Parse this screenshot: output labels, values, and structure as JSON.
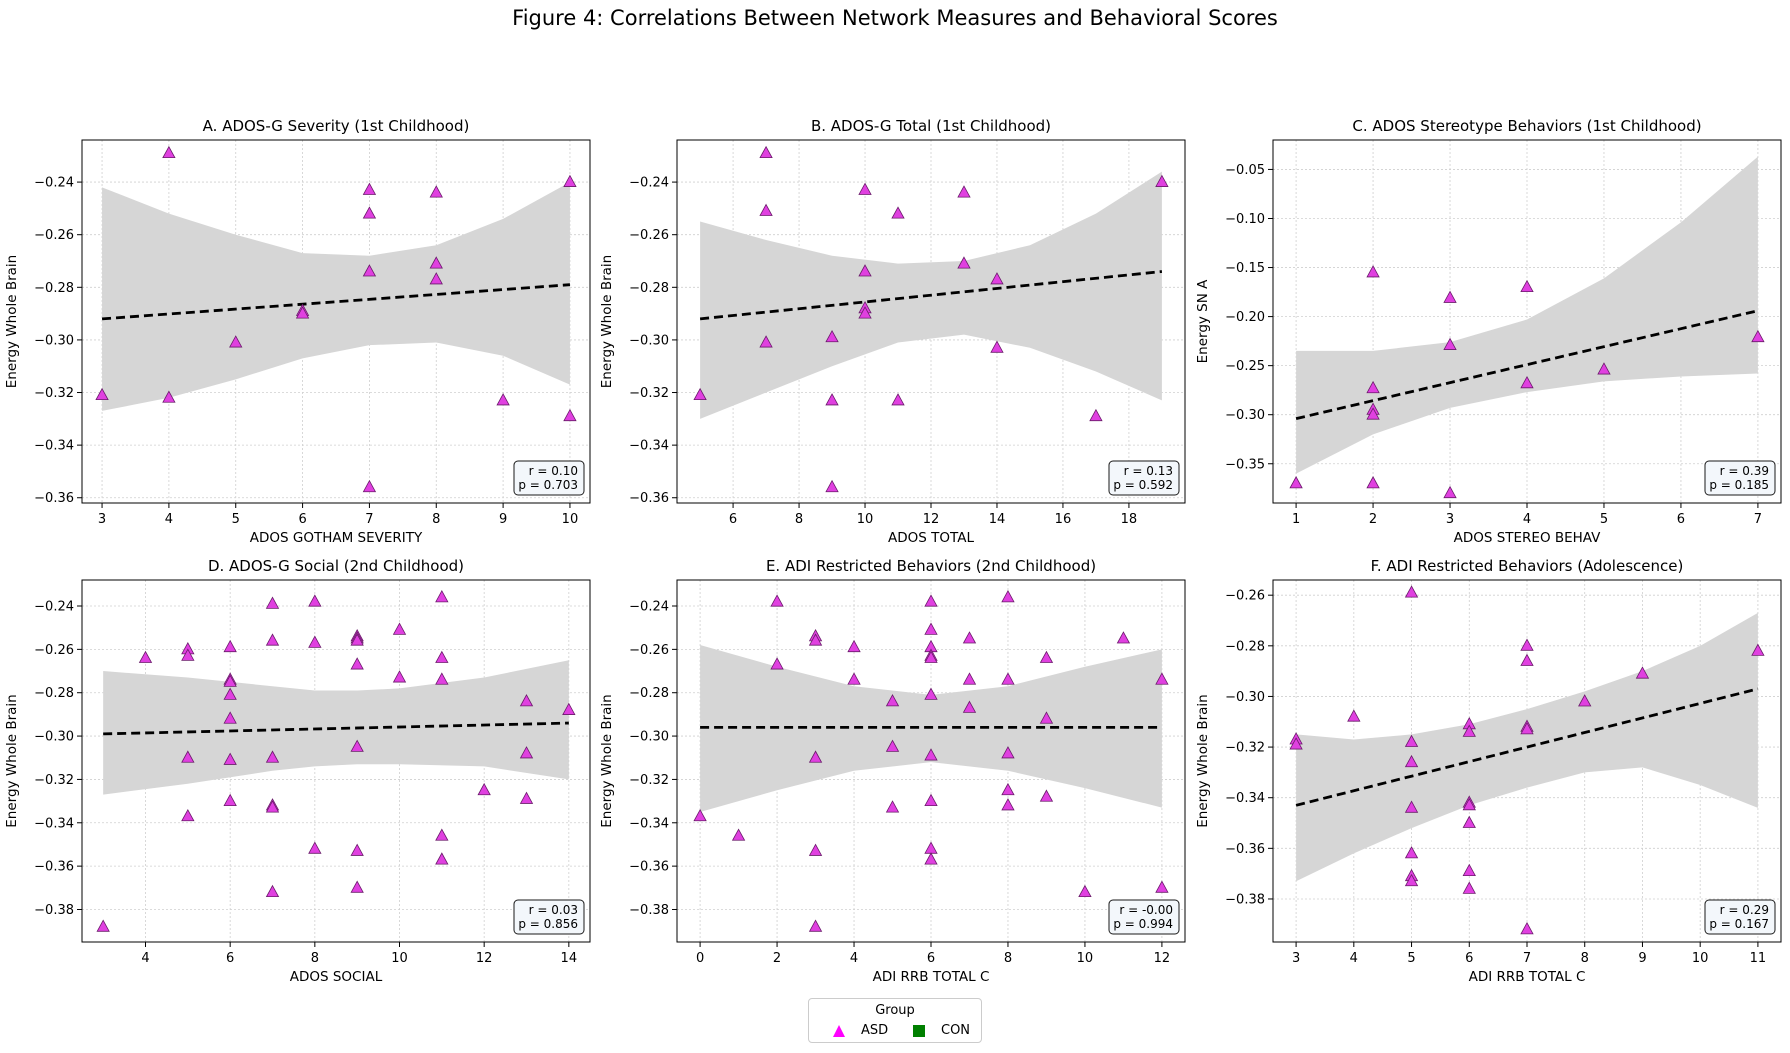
{
  "figure_title": "Figure 4: Correlations Between Network Measures and Behavioral Scores",
  "legend": {
    "title": "Group",
    "items": [
      {
        "label": "ASD",
        "marker": "triangle",
        "color": "#ff00ff"
      },
      {
        "label": "CON",
        "marker": "square",
        "color": "#008000"
      }
    ]
  },
  "colors": {
    "point_fill": "#e040e0",
    "point_edge": "#6a1b6a",
    "band": "#d6d6d6",
    "fit_line": "#000000"
  },
  "chart_data": [
    {
      "type": "scatter",
      "title": "A. ADOS-G Severity (1st Childhood)",
      "xlabel": "ADOS GOTHAM SEVERITY",
      "ylabel": "Energy Whole Brain",
      "xlim": [
        2.7,
        10.3
      ],
      "ylim": [
        -0.362,
        -0.224
      ],
      "xticks": [
        3,
        4,
        5,
        6,
        7,
        8,
        9,
        10
      ],
      "yticks": [
        -0.36,
        -0.34,
        -0.32,
        -0.3,
        -0.28,
        -0.26,
        -0.24
      ],
      "stats": [
        "r = 0.10",
        "p = 0.703"
      ],
      "fit": {
        "x": [
          3,
          10
        ],
        "y": [
          -0.292,
          -0.279
        ]
      },
      "band_upper": [
        [
          3,
          -0.242
        ],
        [
          4,
          -0.252
        ],
        [
          5,
          -0.26
        ],
        [
          6,
          -0.267
        ],
        [
          7,
          -0.268
        ],
        [
          8,
          -0.264
        ],
        [
          9,
          -0.254
        ],
        [
          10,
          -0.24
        ]
      ],
      "band_lower": [
        [
          3,
          -0.327
        ],
        [
          4,
          -0.322
        ],
        [
          5,
          -0.315
        ],
        [
          6,
          -0.307
        ],
        [
          7,
          -0.302
        ],
        [
          8,
          -0.301
        ],
        [
          9,
          -0.306
        ],
        [
          10,
          -0.317
        ]
      ],
      "points": [
        [
          3,
          -0.321
        ],
        [
          4,
          -0.229
        ],
        [
          4,
          -0.322
        ],
        [
          5,
          -0.301
        ],
        [
          6,
          -0.289
        ],
        [
          6,
          -0.29
        ],
        [
          7,
          -0.243
        ],
        [
          7,
          -0.252
        ],
        [
          7,
          -0.274
        ],
        [
          7,
          -0.356
        ],
        [
          8,
          -0.244
        ],
        [
          8,
          -0.271
        ],
        [
          8,
          -0.277
        ],
        [
          9,
          -0.323
        ],
        [
          10,
          -0.24
        ],
        [
          10,
          -0.329
        ]
      ]
    },
    {
      "type": "scatter",
      "title": "B. ADOS-G Total (1st Childhood)",
      "xlabel": "ADOS TOTAL",
      "ylabel": "Energy Whole Brain",
      "xlim": [
        4.3,
        19.7
      ],
      "ylim": [
        -0.362,
        -0.224
      ],
      "xticks": [
        6,
        8,
        10,
        12,
        14,
        16,
        18
      ],
      "yticks": [
        -0.36,
        -0.34,
        -0.32,
        -0.3,
        -0.28,
        -0.26,
        -0.24
      ],
      "stats": [
        "r = 0.13",
        "p = 0.592"
      ],
      "fit": {
        "x": [
          5,
          19
        ],
        "y": [
          -0.292,
          -0.274
        ]
      },
      "band_upper": [
        [
          5,
          -0.255
        ],
        [
          7,
          -0.262
        ],
        [
          9,
          -0.268
        ],
        [
          11,
          -0.271
        ],
        [
          13,
          -0.27
        ],
        [
          15,
          -0.264
        ],
        [
          17,
          -0.252
        ],
        [
          19,
          -0.236
        ]
      ],
      "band_lower": [
        [
          5,
          -0.33
        ],
        [
          7,
          -0.32
        ],
        [
          9,
          -0.31
        ],
        [
          11,
          -0.301
        ],
        [
          13,
          -0.298
        ],
        [
          15,
          -0.303
        ],
        [
          17,
          -0.312
        ],
        [
          19,
          -0.323
        ]
      ],
      "points": [
        [
          5,
          -0.321
        ],
        [
          7,
          -0.229
        ],
        [
          7,
          -0.251
        ],
        [
          7,
          -0.301
        ],
        [
          9,
          -0.299
        ],
        [
          9,
          -0.323
        ],
        [
          9,
          -0.356
        ],
        [
          10,
          -0.243
        ],
        [
          10,
          -0.274
        ],
        [
          10,
          -0.288
        ],
        [
          10,
          -0.29
        ],
        [
          11,
          -0.252
        ],
        [
          11,
          -0.323
        ],
        [
          13,
          -0.244
        ],
        [
          13,
          -0.271
        ],
        [
          14,
          -0.277
        ],
        [
          14,
          -0.303
        ],
        [
          17,
          -0.329
        ],
        [
          19,
          -0.24
        ]
      ]
    },
    {
      "type": "scatter",
      "title": "C. ADOS Stereotype Behaviors (1st Childhood)",
      "xlabel": "ADOS STEREO BEHAV",
      "ylabel": "Energy SN A",
      "xlim": [
        0.7,
        7.3
      ],
      "ylim": [
        -0.39,
        -0.02
      ],
      "xticks": [
        1,
        2,
        3,
        4,
        5,
        6,
        7
      ],
      "yticks": [
        -0.35,
        -0.3,
        -0.25,
        -0.2,
        -0.15,
        -0.1,
        -0.05
      ],
      "stats": [
        "r = 0.39",
        "p = 0.185"
      ],
      "fit": {
        "x": [
          1,
          7
        ],
        "y": [
          -0.304,
          -0.194
        ]
      },
      "band_upper": [
        [
          1,
          -0.235
        ],
        [
          2,
          -0.235
        ],
        [
          3,
          -0.226
        ],
        [
          4,
          -0.203
        ],
        [
          5,
          -0.161
        ],
        [
          6,
          -0.104
        ],
        [
          7,
          -0.037
        ]
      ],
      "band_lower": [
        [
          1,
          -0.36
        ],
        [
          2,
          -0.32
        ],
        [
          3,
          -0.293
        ],
        [
          4,
          -0.277
        ],
        [
          5,
          -0.266
        ],
        [
          6,
          -0.261
        ],
        [
          7,
          -0.258
        ]
      ],
      "points": [
        [
          1,
          -0.37
        ],
        [
          2,
          -0.155
        ],
        [
          2,
          -0.273
        ],
        [
          2,
          -0.295
        ],
        [
          2,
          -0.3
        ],
        [
          2,
          -0.37
        ],
        [
          3,
          -0.181
        ],
        [
          3,
          -0.229
        ],
        [
          3,
          -0.38
        ],
        [
          4,
          -0.17
        ],
        [
          4,
          -0.268
        ],
        [
          5,
          -0.254
        ],
        [
          7,
          -0.221
        ]
      ]
    },
    {
      "type": "scatter",
      "title": "D. ADOS-G Social (2nd Childhood)",
      "xlabel": "ADOS SOCIAL",
      "ylabel": "Energy Whole Brain",
      "xlim": [
        2.5,
        14.5
      ],
      "ylim": [
        -0.395,
        -0.228
      ],
      "xticks": [
        4,
        6,
        8,
        10,
        12,
        14
      ],
      "yticks": [
        -0.38,
        -0.36,
        -0.34,
        -0.32,
        -0.3,
        -0.28,
        -0.26,
        -0.24
      ],
      "stats": [
        "r = 0.03",
        "p = 0.856"
      ],
      "fit": {
        "x": [
          3,
          14
        ],
        "y": [
          -0.299,
          -0.294
        ]
      },
      "band_upper": [
        [
          3,
          -0.27
        ],
        [
          5,
          -0.273
        ],
        [
          7,
          -0.277
        ],
        [
          8,
          -0.279
        ],
        [
          9,
          -0.279
        ],
        [
          10,
          -0.278
        ],
        [
          12,
          -0.273
        ],
        [
          14,
          -0.265
        ]
      ],
      "band_lower": [
        [
          3,
          -0.327
        ],
        [
          5,
          -0.322
        ],
        [
          7,
          -0.316
        ],
        [
          8,
          -0.314
        ],
        [
          9,
          -0.313
        ],
        [
          10,
          -0.313
        ],
        [
          12,
          -0.314
        ],
        [
          14,
          -0.32
        ]
      ],
      "points": [
        [
          3,
          -0.388
        ],
        [
          4,
          -0.264
        ],
        [
          5,
          -0.26
        ],
        [
          5,
          -0.263
        ],
        [
          5,
          -0.31
        ],
        [
          5,
          -0.337
        ],
        [
          6,
          -0.259
        ],
        [
          6,
          -0.274
        ],
        [
          6,
          -0.275
        ],
        [
          6,
          -0.281
        ],
        [
          6,
          -0.292
        ],
        [
          6,
          -0.311
        ],
        [
          6,
          -0.33
        ],
        [
          7,
          -0.239
        ],
        [
          7,
          -0.256
        ],
        [
          7,
          -0.31
        ],
        [
          7,
          -0.332
        ],
        [
          7,
          -0.333
        ],
        [
          7,
          -0.372
        ],
        [
          8,
          -0.238
        ],
        [
          8,
          -0.257
        ],
        [
          8,
          -0.352
        ],
        [
          9,
          -0.254
        ],
        [
          9,
          -0.255
        ],
        [
          9,
          -0.256
        ],
        [
          9,
          -0.267
        ],
        [
          9,
          -0.305
        ],
        [
          9,
          -0.353
        ],
        [
          9,
          -0.37
        ],
        [
          10,
          -0.251
        ],
        [
          10,
          -0.273
        ],
        [
          11,
          -0.236
        ],
        [
          11,
          -0.264
        ],
        [
          11,
          -0.274
        ],
        [
          11,
          -0.346
        ],
        [
          11,
          -0.357
        ],
        [
          12,
          -0.325
        ],
        [
          13,
          -0.284
        ],
        [
          13,
          -0.308
        ],
        [
          13,
          -0.329
        ],
        [
          14,
          -0.288
        ]
      ]
    },
    {
      "type": "scatter",
      "title": "E. ADI Restricted Behaviors (2nd Childhood)",
      "xlabel": "ADI RRB TOTAL C",
      "ylabel": "Energy Whole Brain",
      "xlim": [
        -0.6,
        12.6
      ],
      "ylim": [
        -0.395,
        -0.228
      ],
      "xticks": [
        0,
        2,
        4,
        6,
        8,
        10,
        12
      ],
      "yticks": [
        -0.38,
        -0.36,
        -0.34,
        -0.32,
        -0.3,
        -0.28,
        -0.26,
        -0.24
      ],
      "stats": [
        "r = -0.00",
        "p = 0.994"
      ],
      "fit": {
        "x": [
          0,
          12
        ],
        "y": [
          -0.296,
          -0.296
        ]
      },
      "band_upper": [
        [
          0,
          -0.258
        ],
        [
          2,
          -0.268
        ],
        [
          4,
          -0.277
        ],
        [
          6,
          -0.281
        ],
        [
          8,
          -0.277
        ],
        [
          10,
          -0.268
        ],
        [
          12,
          -0.26
        ]
      ],
      "band_lower": [
        [
          0,
          -0.335
        ],
        [
          2,
          -0.325
        ],
        [
          4,
          -0.316
        ],
        [
          6,
          -0.312
        ],
        [
          8,
          -0.316
        ],
        [
          10,
          -0.324
        ],
        [
          12,
          -0.333
        ]
      ],
      "points": [
        [
          0,
          -0.337
        ],
        [
          1,
          -0.346
        ],
        [
          2,
          -0.238
        ],
        [
          2,
          -0.267
        ],
        [
          3,
          -0.254
        ],
        [
          3,
          -0.256
        ],
        [
          3,
          -0.31
        ],
        [
          3,
          -0.353
        ],
        [
          3,
          -0.388
        ],
        [
          4,
          -0.259
        ],
        [
          4,
          -0.274
        ],
        [
          5,
          -0.284
        ],
        [
          5,
          -0.305
        ],
        [
          5,
          -0.333
        ],
        [
          6,
          -0.238
        ],
        [
          6,
          -0.251
        ],
        [
          6,
          -0.259
        ],
        [
          6,
          -0.263
        ],
        [
          6,
          -0.264
        ],
        [
          6,
          -0.281
        ],
        [
          6,
          -0.309
        ],
        [
          6,
          -0.33
        ],
        [
          6,
          -0.352
        ],
        [
          6,
          -0.357
        ],
        [
          7,
          -0.255
        ],
        [
          7,
          -0.274
        ],
        [
          7,
          -0.287
        ],
        [
          8,
          -0.236
        ],
        [
          8,
          -0.274
        ],
        [
          8,
          -0.308
        ],
        [
          8,
          -0.325
        ],
        [
          8,
          -0.332
        ],
        [
          9,
          -0.264
        ],
        [
          9,
          -0.292
        ],
        [
          9,
          -0.328
        ],
        [
          10,
          -0.372
        ],
        [
          11,
          -0.255
        ],
        [
          12,
          -0.274
        ],
        [
          12,
          -0.37
        ]
      ]
    },
    {
      "type": "scatter",
      "title": "F. ADI Restricted Behaviors (Adolescence)",
      "xlabel": "ADI RRB TOTAL C",
      "ylabel": "Energy Whole Brain",
      "xlim": [
        2.6,
        11.4
      ],
      "ylim": [
        -0.397,
        -0.254
      ],
      "xticks": [
        3,
        4,
        5,
        6,
        7,
        8,
        9,
        10,
        11
      ],
      "yticks": [
        -0.38,
        -0.36,
        -0.34,
        -0.32,
        -0.3,
        -0.28,
        -0.26
      ],
      "stats": [
        "r = 0.29",
        "p = 0.167"
      ],
      "fit": {
        "x": [
          3,
          11
        ],
        "y": [
          -0.343,
          -0.297
        ]
      },
      "band_upper": [
        [
          3,
          -0.315
        ],
        [
          4,
          -0.317
        ],
        [
          5,
          -0.315
        ],
        [
          6,
          -0.311
        ],
        [
          7,
          -0.305
        ],
        [
          8,
          -0.298
        ],
        [
          9,
          -0.29
        ],
        [
          10,
          -0.28
        ],
        [
          11,
          -0.267
        ]
      ],
      "band_lower": [
        [
          3,
          -0.373
        ],
        [
          4,
          -0.362
        ],
        [
          5,
          -0.352
        ],
        [
          6,
          -0.343
        ],
        [
          7,
          -0.336
        ],
        [
          8,
          -0.33
        ],
        [
          9,
          -0.328
        ],
        [
          10,
          -0.335
        ],
        [
          11,
          -0.344
        ]
      ],
      "points": [
        [
          3,
          -0.317
        ],
        [
          3,
          -0.319
        ],
        [
          4,
          -0.308
        ],
        [
          5,
          -0.259
        ],
        [
          5,
          -0.318
        ],
        [
          5,
          -0.326
        ],
        [
          5,
          -0.344
        ],
        [
          5,
          -0.362
        ],
        [
          5,
          -0.371
        ],
        [
          5,
          -0.373
        ],
        [
          6,
          -0.311
        ],
        [
          6,
          -0.314
        ],
        [
          6,
          -0.342
        ],
        [
          6,
          -0.343
        ],
        [
          6,
          -0.35
        ],
        [
          6,
          -0.369
        ],
        [
          6,
          -0.376
        ],
        [
          7,
          -0.28
        ],
        [
          7,
          -0.286
        ],
        [
          7,
          -0.312
        ],
        [
          7,
          -0.313
        ],
        [
          7,
          -0.392
        ],
        [
          8,
          -0.302
        ],
        [
          9,
          -0.291
        ],
        [
          11,
          -0.282
        ]
      ]
    }
  ]
}
